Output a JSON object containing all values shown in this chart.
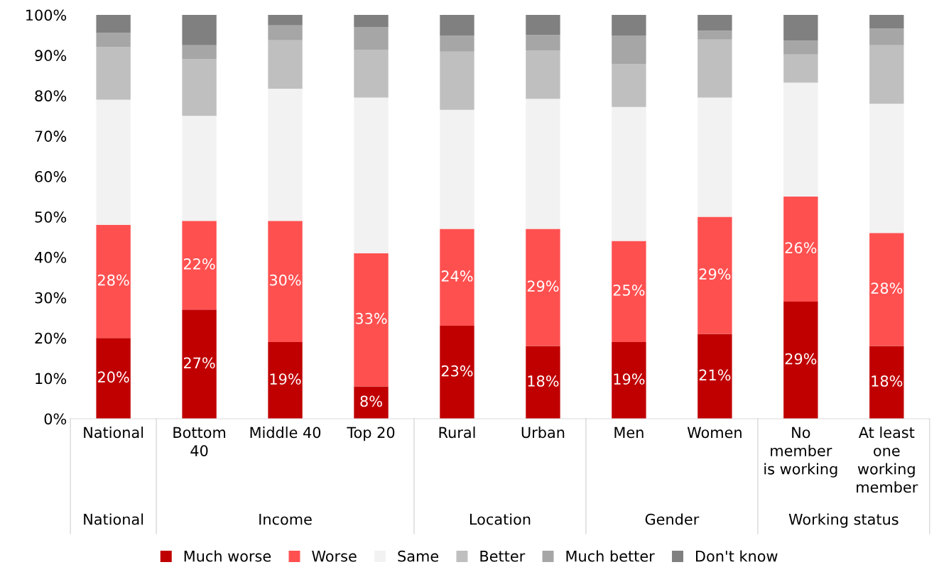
{
  "chart_data": {
    "type": "bar",
    "stacked": true,
    "categories": [
      "National",
      "Bottom\n40",
      "Middle 40",
      "Top 20",
      "Rural",
      "Urban",
      "Men",
      "Women",
      "No\nmember\nis working",
      "At least\none\nworking\nmember"
    ],
    "series": [
      {
        "name": "Much worse",
        "color": "#c00000",
        "values": [
          20,
          27,
          19,
          8,
          23,
          18,
          19,
          21,
          29,
          18
        ],
        "value_labels": [
          "20%",
          "27%",
          "19%",
          "8%",
          "23%",
          "18%",
          "19%",
          "21%",
          "29%",
          "18%"
        ]
      },
      {
        "name": "Worse",
        "color": "#ff5050",
        "values": [
          28,
          22,
          30,
          33,
          24,
          29,
          25,
          29,
          26,
          28
        ],
        "value_labels": [
          "28%",
          "22%",
          "30%",
          "33%",
          "24%",
          "29%",
          "25%",
          "29%",
          "26%",
          "28%"
        ]
      },
      {
        "name": "Same",
        "color": "#f2f2f2",
        "values": [
          31,
          26,
          32.7,
          38.5,
          29.5,
          32.2,
          33.2,
          29.5,
          28.2,
          32
        ]
      },
      {
        "name": "Better",
        "color": "#bfbfbf",
        "values": [
          13,
          14,
          12,
          11.9,
          14.4,
          11.9,
          10.6,
          14.4,
          7,
          14.5
        ]
      },
      {
        "name": "Much better",
        "color": "#a6a6a6",
        "values": [
          3.5,
          3.5,
          3.7,
          5.5,
          3.9,
          3.9,
          7.1,
          2.2,
          3.4,
          4.1
        ]
      },
      {
        "name": "Don't know",
        "color": "#808080",
        "values": [
          4.5,
          7.5,
          2.6,
          3.1,
          5.2,
          5,
          5.1,
          3.9,
          6.4,
          3.4
        ]
      }
    ],
    "ylim": [
      0,
      100
    ],
    "yticks": [
      {
        "value": 0,
        "label": "0%"
      },
      {
        "value": 10,
        "label": "10%"
      },
      {
        "value": 20,
        "label": "20%"
      },
      {
        "value": 30,
        "label": "30%"
      },
      {
        "value": 40,
        "label": "40%"
      },
      {
        "value": 50,
        "label": "50%"
      },
      {
        "value": 60,
        "label": "60%"
      },
      {
        "value": 70,
        "label": "70%"
      },
      {
        "value": 80,
        "label": "80%"
      },
      {
        "value": 90,
        "label": "90%"
      },
      {
        "value": 100,
        "label": "100%"
      }
    ],
    "annotations": [
      "National",
      "Income",
      "Location",
      "Gender",
      "Working status"
    ],
    "grid": false,
    "legend": "bottom"
  }
}
